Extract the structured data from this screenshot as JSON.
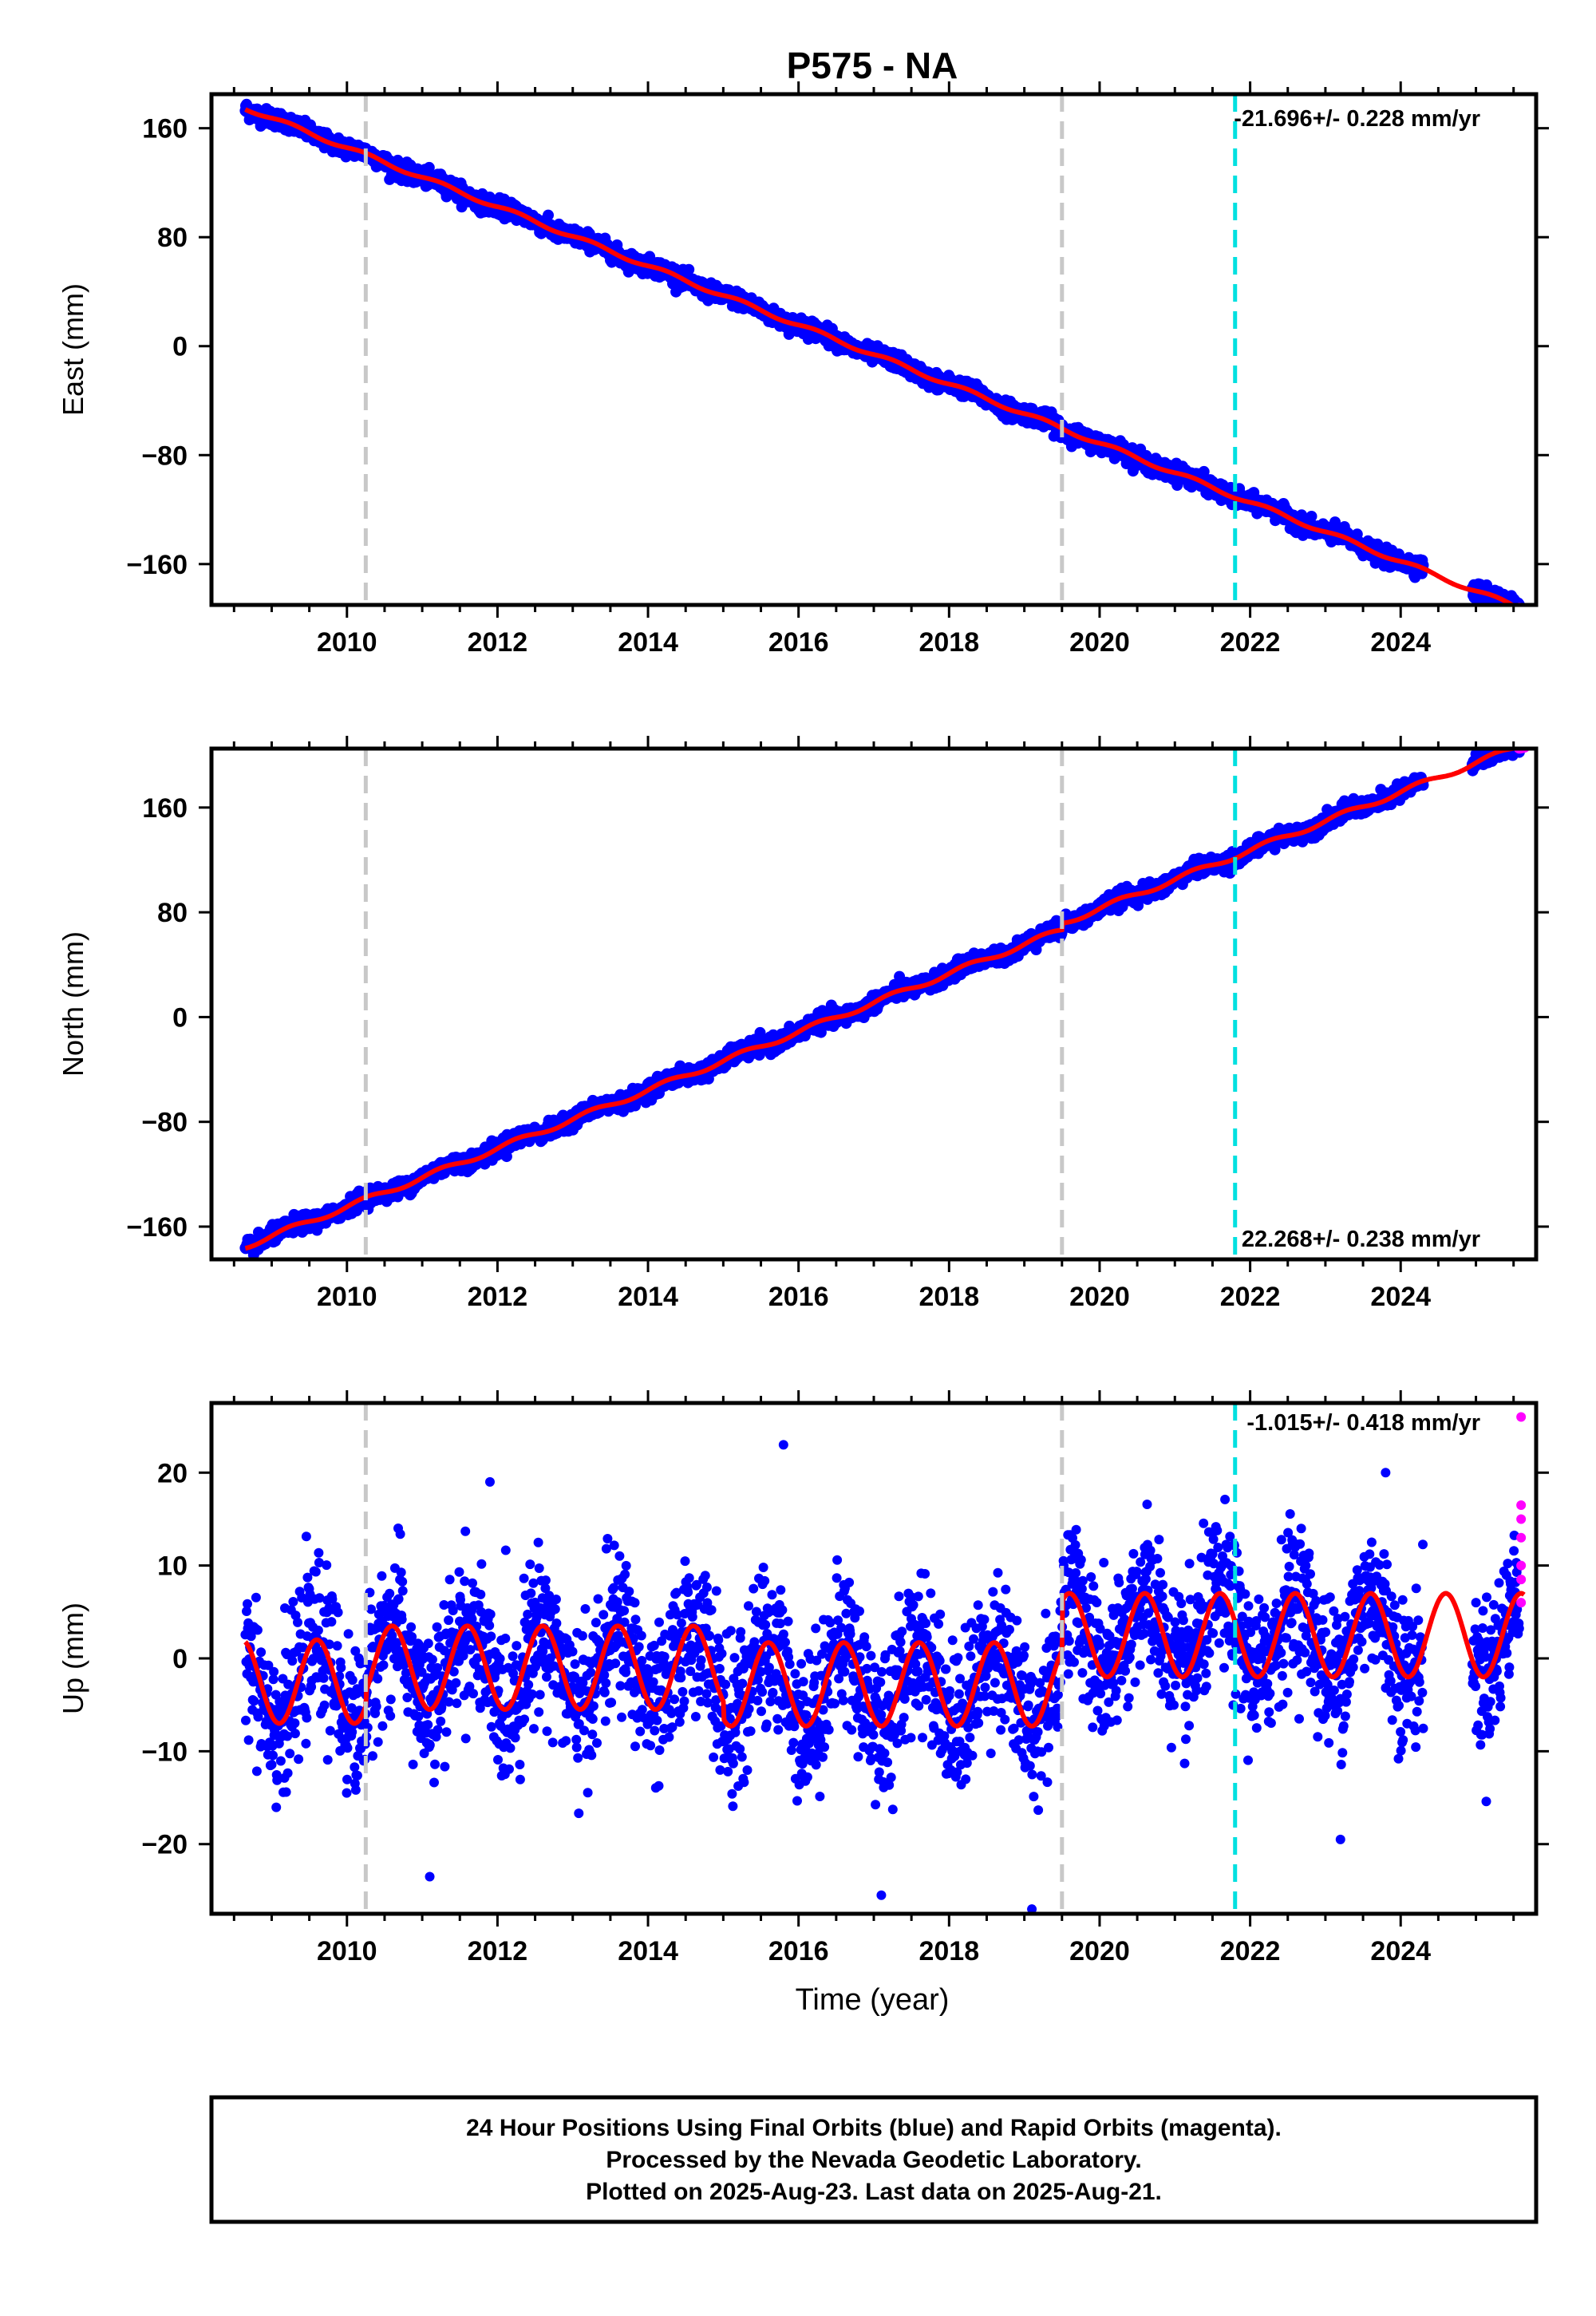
{
  "figure": {
    "title": "P575 - NA",
    "xlabel": "Time (year)",
    "footer_lines": [
      "24 Hour Positions Using Final Orbits (blue) and Rapid Orbits (magenta).",
      "Processed by the Nevada Geodetic Laboratory.",
      "Plotted on 2025-Aug-23. Last data on 2025-Aug-21."
    ],
    "colors": {
      "final": "#0000ff",
      "rapid": "#ff00ff",
      "model": "#ff0000",
      "equipment_change": "#c8c8c8",
      "earthquake": "#00e0e0",
      "frame": "#000000"
    }
  },
  "chart_data": [
    {
      "type": "scatter",
      "ylabel": "East (mm)",
      "rate_label": "-21.696+/- 0.228 mm/yr",
      "rate_mm_per_yr": -21.696,
      "rate_sigma": 0.228,
      "xlim": [
        2008.2,
        2025.8
      ],
      "ylim": [
        -190,
        185
      ],
      "xticks": [
        2010,
        2012,
        2014,
        2016,
        2018,
        2020,
        2022,
        2024
      ],
      "yticks": [
        160,
        80,
        0,
        -80,
        -160
      ],
      "data_start": 2008.65,
      "data_end": 2025.64,
      "start_value": 175,
      "seasonal_amplitude": 1.5,
      "scatter": 3,
      "gap": [
        2024.3,
        2024.95
      ],
      "rapid_points": [
        2025.58,
        2025.6,
        2025.62,
        2025.64
      ],
      "vertical_lines": {
        "equipment": [
          2010.25,
          2019.5
        ],
        "earthquake": [
          2021.8
        ]
      }
    },
    {
      "type": "scatter",
      "ylabel": "North (mm)",
      "rate_label": "22.268+/- 0.238 mm/yr",
      "rate_mm_per_yr": 22.268,
      "rate_sigma": 0.238,
      "xlim": [
        2008.2,
        2025.8
      ],
      "ylim": [
        -185,
        205
      ],
      "xticks": [
        2010,
        2012,
        2014,
        2016,
        2018,
        2020,
        2022,
        2024
      ],
      "yticks": [
        160,
        80,
        0,
        -80,
        -160
      ],
      "data_start": 2008.65,
      "data_end": 2025.64,
      "start_value": -175,
      "seasonal_amplitude": 2,
      "scatter": 3,
      "offset_at": 2019.5,
      "offset_value": 5,
      "gap": [
        2024.3,
        2024.95
      ],
      "rapid_points": [
        2025.58,
        2025.6,
        2025.62,
        2025.64
      ],
      "vertical_lines": {
        "equipment": [
          2010.25,
          2019.5
        ],
        "earthquake": [
          2021.8
        ]
      }
    },
    {
      "type": "scatter",
      "ylabel": "Up (mm)",
      "rate_label": "-1.015+/- 0.418 mm/yr",
      "rate_mm_per_yr": -1.015,
      "rate_sigma": 0.418,
      "xlim": [
        2008.2,
        2025.8
      ],
      "ylim": [
        -27.5,
        27.5
      ],
      "xticks": [
        2010,
        2012,
        2014,
        2016,
        2018,
        2020,
        2022,
        2024
      ],
      "yticks": [
        20,
        10,
        0,
        -10,
        -20
      ],
      "data_start": 2008.65,
      "data_end": 2025.64,
      "seasonal_amplitude": 4.5,
      "scatter": 4,
      "model_mean_by_segment": [
        {
          "from": 2008.6,
          "to": 2010.25,
          "mean": -2.5
        },
        {
          "from": 2010.25,
          "to": 2015.0,
          "mean": -1.0
        },
        {
          "from": 2015.0,
          "to": 2019.5,
          "mean": -2.8
        },
        {
          "from": 2019.5,
          "to": 2025.7,
          "mean": 2.5
        }
      ],
      "gap": [
        2024.3,
        2024.95
      ],
      "outliers": [
        [
          2015.8,
          23
        ],
        [
          2011.9,
          19
        ],
        [
          2023.8,
          20
        ],
        [
          2011.1,
          -23.5
        ],
        [
          2019.1,
          -27
        ],
        [
          2017.1,
          -25.5
        ],
        [
          2023.2,
          -19.5
        ]
      ],
      "rapid_points": [
        [
          2025.6,
          26
        ],
        [
          2025.6,
          16.5
        ],
        [
          2025.6,
          15
        ],
        [
          2025.6,
          13
        ],
        [
          2025.6,
          10
        ],
        [
          2025.6,
          8.5
        ],
        [
          2025.6,
          6
        ]
      ],
      "vertical_lines": {
        "equipment": [
          2010.25,
          2019.5
        ],
        "earthquake": [
          2021.8
        ]
      }
    }
  ]
}
